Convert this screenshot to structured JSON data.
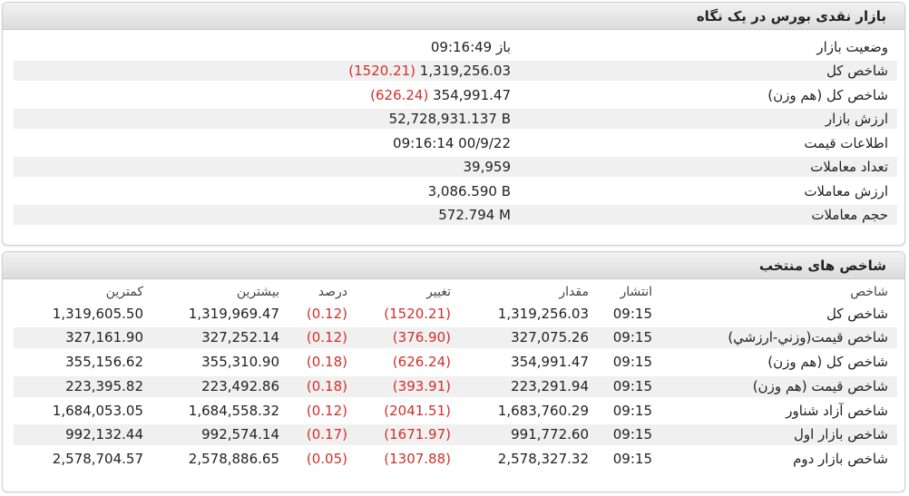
{
  "summary": {
    "title": "بازار نقدی بورس در یک نگاه",
    "rows": [
      {
        "label": "وضعیت بازار",
        "value": "باز 09:16:49"
      },
      {
        "label": "شاخص کل",
        "value": "1,319,256.03",
        "change": "(1520.21)"
      },
      {
        "label": "شاخص کل (هم وزن)",
        "value": "354,991.47",
        "change": "(626.24)"
      },
      {
        "label": "ارزش بازار",
        "value": "52,728,931.137 B"
      },
      {
        "label": "اطلاعات قیمت",
        "value": "09:16:14 00/9/22"
      },
      {
        "label": "تعداد معاملات",
        "value": "39,959"
      },
      {
        "label": "ارزش معاملات",
        "value": "3,086.590 B"
      },
      {
        "label": "حجم معاملات",
        "value": "572.794 M"
      }
    ]
  },
  "indices": {
    "title": "شاخص های منتخب",
    "headers": {
      "name": "شاخص",
      "time": "انتشار",
      "value": "مقدار",
      "change": "تغییر",
      "percent": "درصد",
      "max": "بیشترین",
      "min": "کمترین"
    },
    "rows": [
      {
        "name": "شاخص کل",
        "time": "09:15",
        "value": "1,319,256.03",
        "change": "(1520.21)",
        "percent": "(0.12)",
        "max": "1,319,969.47",
        "min": "1,319,605.50"
      },
      {
        "name": "شاخص قیمت(وزني-ارزشي)",
        "time": "09:15",
        "value": "327,075.26",
        "change": "(376.90)",
        "percent": "(0.12)",
        "max": "327,252.14",
        "min": "327,161.90"
      },
      {
        "name": "شاخص کل (هم وزن)",
        "time": "09:15",
        "value": "354,991.47",
        "change": "(626.24)",
        "percent": "(0.18)",
        "max": "355,310.90",
        "min": "355,156.62"
      },
      {
        "name": "شاخص قیمت (هم وزن)",
        "time": "09:15",
        "value": "223,291.94",
        "change": "(393.91)",
        "percent": "(0.18)",
        "max": "223,492.86",
        "min": "223,395.82"
      },
      {
        "name": "شاخص آزاد شناور",
        "time": "09:15",
        "value": "1,683,760.29",
        "change": "(2041.51)",
        "percent": "(0.12)",
        "max": "1,684,558.32",
        "min": "1,684,053.05"
      },
      {
        "name": "شاخص بازار اول",
        "time": "09:15",
        "value": "991,772.60",
        "change": "(1671.97)",
        "percent": "(0.17)",
        "max": "992,574.14",
        "min": "992,132.44"
      },
      {
        "name": "شاخص بازار دوم",
        "time": "09:15",
        "value": "2,578,327.32",
        "change": "(1307.88)",
        "percent": "(0.05)",
        "max": "2,578,886.65",
        "min": "2,578,704.57"
      }
    ]
  },
  "colors": {
    "negative": "#d0302a",
    "row_shade": "#f0f0f0",
    "header_bg": "#dcdcdc"
  }
}
